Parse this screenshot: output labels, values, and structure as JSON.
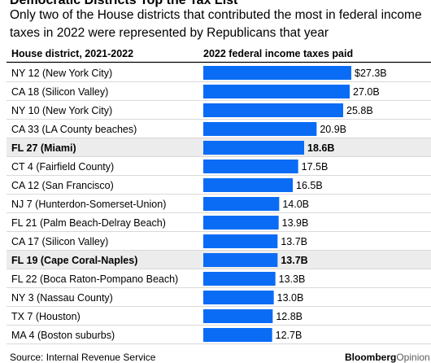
{
  "header": {
    "title": "Democratic Districts Top the Tax List",
    "subtitle": "Only two of the House districts that contributed the most in federal income taxes in 2022 were represented by Republicans that year",
    "col_district": "House district, 2021-2022",
    "col_taxes": "2022 federal income taxes paid"
  },
  "footer": {
    "source": "Source: Internal Revenue Service",
    "brand_bold": "Bloomberg",
    "brand_light": "Opinion"
  },
  "colors": {
    "bar": "#0a6cf5",
    "highlight_row": "#ececec",
    "divider": "#d9d9d9"
  },
  "chart_data": {
    "type": "bar",
    "orientation": "horizontal",
    "categories": [
      "NY 12 (New York City)",
      "CA 18 (Silicon Valley)",
      "NY 10 (New York City)",
      "CA 33 (LA County beaches)",
      "FL 27 (Miami)",
      "CT 4 (Fairfield County)",
      "CA 12 (San Francisco)",
      "NJ 7 (Hunterdon-Somerset-Union)",
      "FL 21 (Palm Beach-Delray Beach)",
      "CA 17 (Silicon Valley)",
      "FL 19 (Cape Coral-Naples)",
      "FL 22 (Boca Raton-Pompano Beach)",
      "NY 3 (Nassau County)",
      "TX 7 (Houston)",
      "MA 4 (Boston suburbs)"
    ],
    "values": [
      27.3,
      27.0,
      25.8,
      20.9,
      18.6,
      17.5,
      16.5,
      14.0,
      13.9,
      13.7,
      13.7,
      13.3,
      13.0,
      12.8,
      12.7
    ],
    "labels": [
      "$27.3B",
      "27.0B",
      "25.8B",
      "20.9B",
      "18.6B",
      "17.5B",
      "16.5B",
      "14.0B",
      "13.9B",
      "13.7B",
      "13.7B",
      "13.3B",
      "13.0B",
      "12.8B",
      "12.7B"
    ],
    "highlighted": [
      "FL 27 (Miami)",
      "FL 19 (Cape Coral-Naples)"
    ],
    "unit": "$B",
    "xlim": [
      0,
      27.3
    ]
  }
}
